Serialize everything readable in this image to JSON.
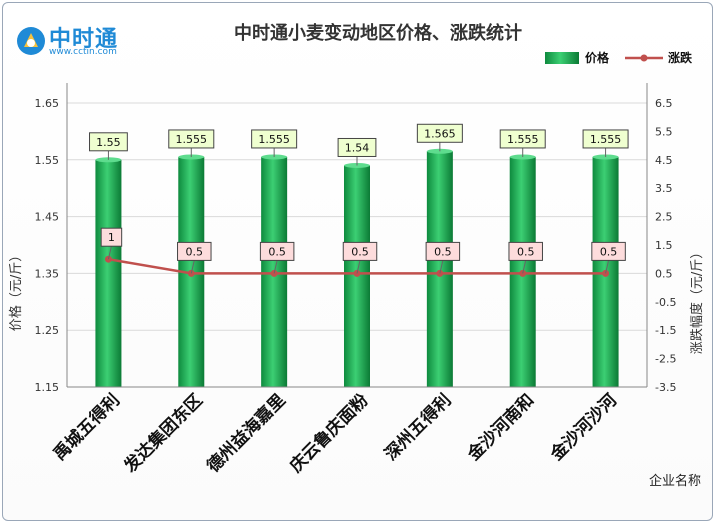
{
  "logo": {
    "name": "中时通",
    "url": "www.cctin.com"
  },
  "chart_data": {
    "type": "bar",
    "title": "中时通小麦变动地区价格、涨跌统计",
    "categories": [
      "禹城五得利",
      "发达集团东区",
      "德州益海嘉里",
      "庆云鲁庆面粉",
      "深州五得利",
      "金沙河南和",
      "金沙河沙河"
    ],
    "series": [
      {
        "name": "价格",
        "type": "bar",
        "axis": "left",
        "values": [
          1.55,
          1.555,
          1.555,
          1.54,
          1.565,
          1.555,
          1.555
        ],
        "labels": [
          "1.55",
          "1.555",
          "1.555",
          "1.54",
          "1.565",
          "1.555",
          "1.555"
        ]
      },
      {
        "name": "涨跌",
        "type": "line",
        "axis": "right",
        "values": [
          1,
          0.5,
          0.5,
          0.5,
          0.5,
          0.5,
          0.5
        ],
        "labels": [
          "1",
          "0.5",
          "0.5",
          "0.5",
          "0.5",
          "0.5",
          "0.5"
        ]
      }
    ],
    "ylabel": "价格（元/斤）",
    "y2label": "涨跌幅度（元/斤）",
    "xlabel": "企业名称",
    "ylim": [
      1.15,
      1.65
    ],
    "yticks": [
      "1.15",
      "1.25",
      "1.35",
      "1.45",
      "1.55",
      "1.65"
    ],
    "y2lim": [
      -3.5,
      6.5
    ],
    "y2ticks": [
      "-3.5",
      "-2.5",
      "-1.5",
      "-0.5",
      "0.5",
      "1.5",
      "2.5",
      "3.5",
      "4.5",
      "5.5",
      "6.5"
    ],
    "legend": "top-right",
    "grid": true,
    "colors": {
      "bar": "#1aa650",
      "line": "#c0504d",
      "price_label_bg": "#efffd0",
      "change_label_bg": "#fddcdc"
    }
  }
}
